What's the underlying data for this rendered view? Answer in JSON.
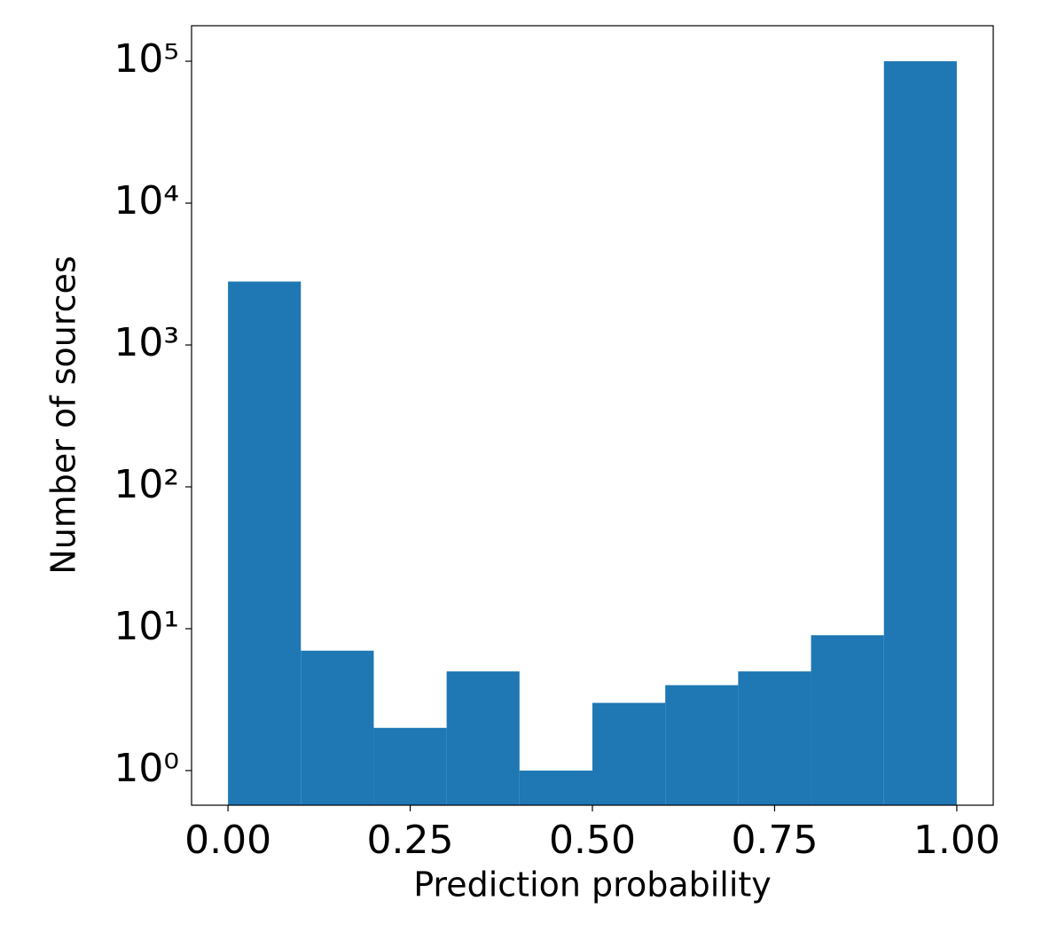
{
  "chart_data": {
    "type": "histogram",
    "xlabel": "Prediction probability",
    "ylabel": "Number of sources",
    "bins": [
      0,
      0.1,
      0.2,
      0.3,
      0.4,
      0.5,
      0.6,
      0.7,
      0.8,
      0.9,
      1.0
    ],
    "values": [
      2800,
      7,
      2,
      5,
      1,
      3,
      4,
      5,
      9,
      100000
    ],
    "color": "#1f77b4",
    "xlim": [
      -0.05,
      1.05
    ],
    "xticks": [
      {
        "value": 0,
        "label": "0.00"
      },
      {
        "value": 0.25,
        "label": "0.25"
      },
      {
        "value": 0.5,
        "label": "0.50"
      },
      {
        "value": 0.75,
        "label": "0.75"
      },
      {
        "value": 1,
        "label": "1.00"
      }
    ],
    "ylim": [
      0.57,
      178000
    ],
    "yscale": "log",
    "yticks": [
      {
        "value": 1,
        "label": "10⁰"
      },
      {
        "value": 10,
        "label": "10¹"
      },
      {
        "value": 100,
        "label": "10²"
      },
      {
        "value": 1000,
        "label": "10³"
      },
      {
        "value": 10000,
        "label": "10⁴"
      },
      {
        "value": 100000,
        "label": "10⁵"
      }
    ]
  }
}
